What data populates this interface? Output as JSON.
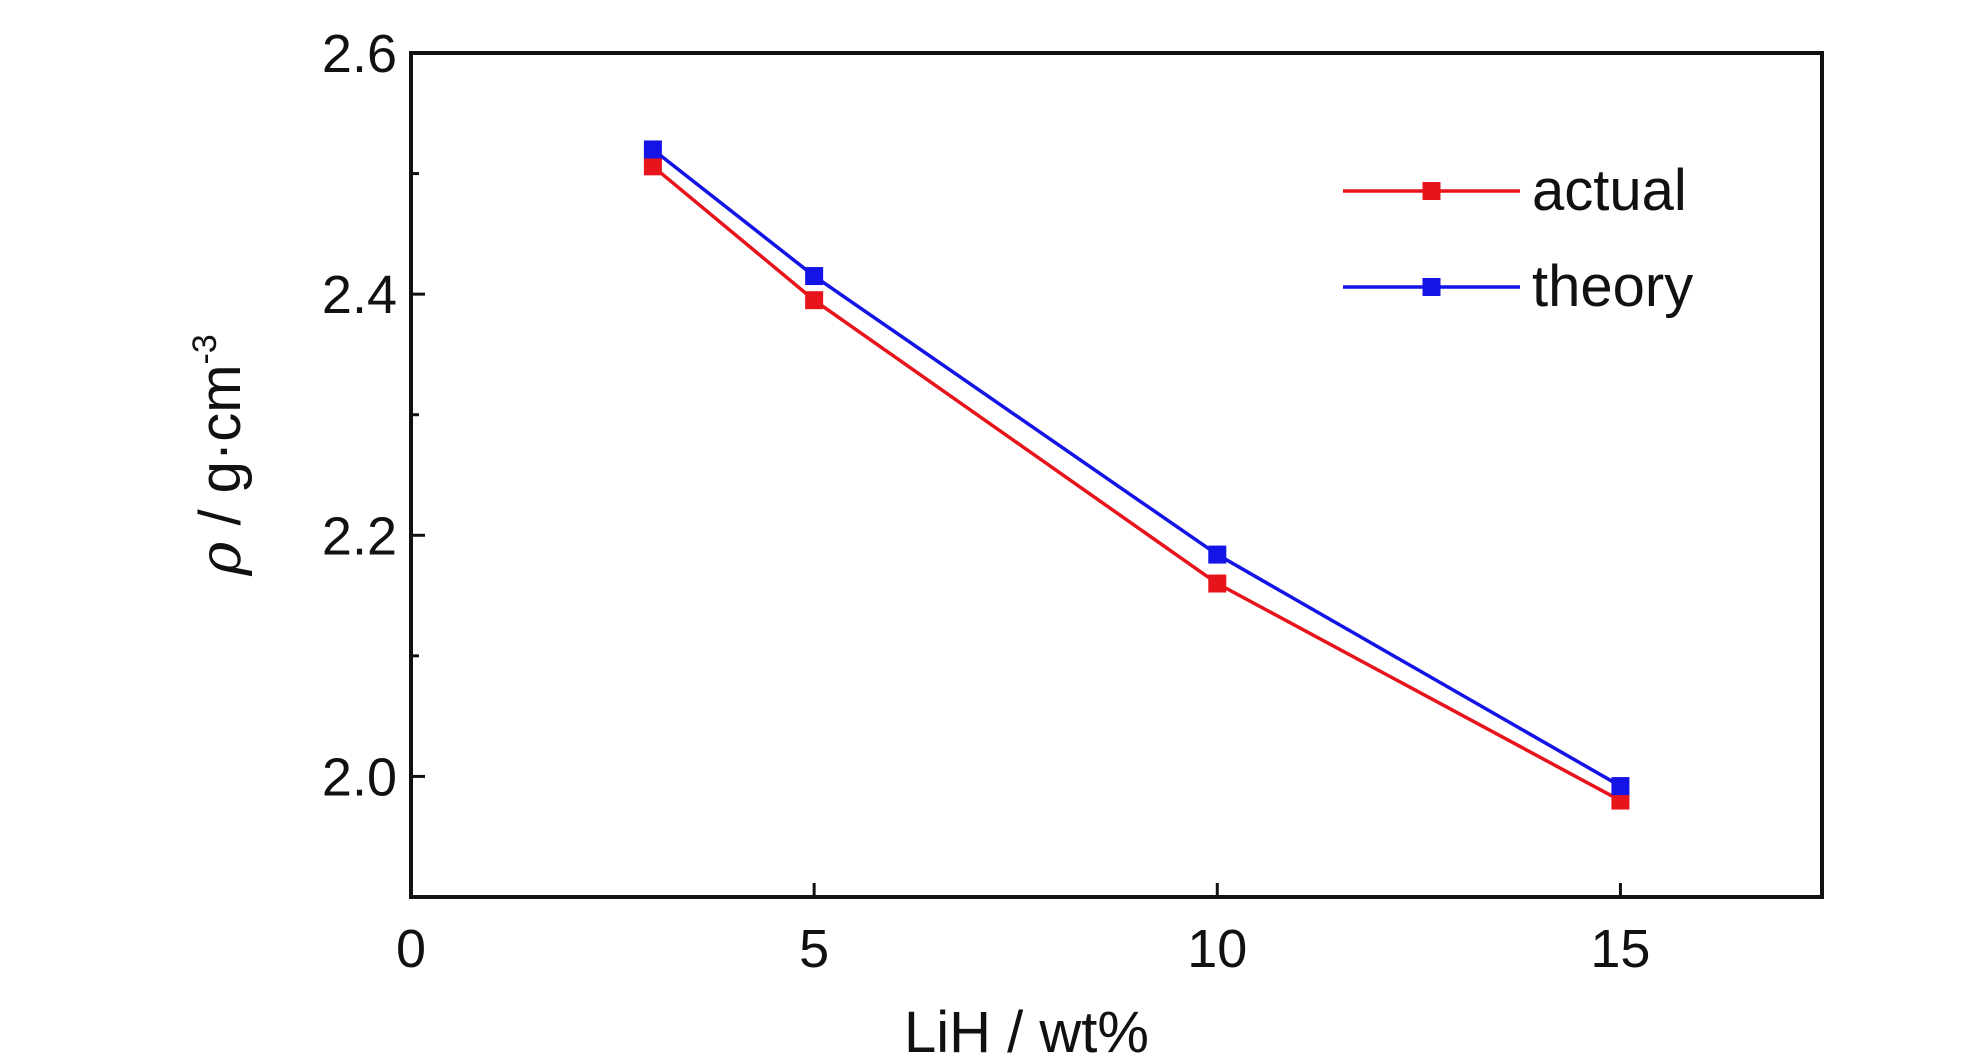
{
  "chart_data": {
    "type": "line",
    "title": "",
    "xlabel": "LiH / wt%",
    "ylabel": {
      "symbol": "ρ",
      "unit_main": " / g·cm",
      "unit_sup": "-3"
    },
    "xlim": [
      0,
      17.5
    ],
    "ylim": [
      1.9,
      2.6
    ],
    "x_ticks": [
      0,
      5,
      10,
      15
    ],
    "x_tick_labels": [
      "0",
      "5",
      "10",
      "15"
    ],
    "y_ticks": [
      2.0,
      2.2,
      2.4,
      2.6
    ],
    "y_tick_labels": [
      "2.0",
      "2.2",
      "2.4",
      "2.6"
    ],
    "y_minor_ticks": [
      2.1,
      2.3,
      2.5
    ],
    "grid": false,
    "legend_position": "top-right",
    "x": [
      3,
      5,
      10,
      15
    ],
    "series": [
      {
        "name": "actual",
        "color": "#e8141c",
        "values": [
          2.506,
          2.395,
          2.16,
          1.98
        ]
      },
      {
        "name": "theory",
        "color": "#1414e6",
        "values": [
          2.52,
          2.415,
          2.184,
          1.992
        ]
      }
    ]
  }
}
